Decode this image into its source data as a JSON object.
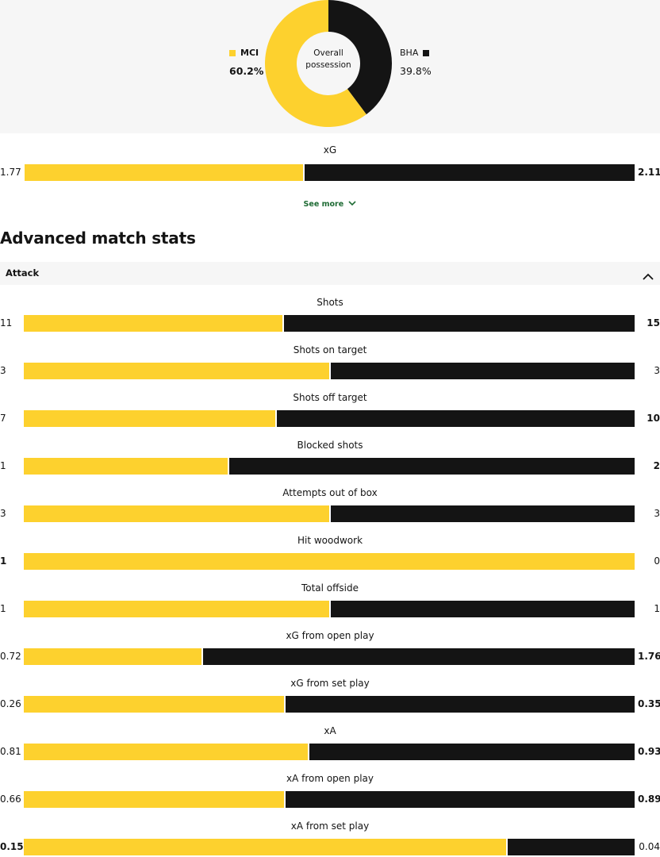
{
  "possession": {
    "center_label_1": "Overall",
    "center_label_2": "possession",
    "home": {
      "name": "MCI",
      "value": 60.2,
      "label": "60.2%",
      "color": "#fdd12e"
    },
    "away": {
      "name": "BHA",
      "value": 39.8,
      "label": "39.8%",
      "color": "#141414"
    }
  },
  "xg": {
    "label": "xG",
    "home": "1.77",
    "away": "2.11",
    "home_num": 1.77,
    "away_num": 2.11
  },
  "see_more": {
    "label": "See more",
    "icon": "chevron-down-icon"
  },
  "advanced": {
    "title": "Advanced match stats",
    "section": {
      "label": "Attack",
      "icon": "chevron-up-icon",
      "expanded": true
    }
  },
  "stats": [
    {
      "label": "Shots",
      "home": "11",
      "away": "15",
      "home_num": 11,
      "away_num": 15
    },
    {
      "label": "Shots on target",
      "home": "3",
      "away": "3",
      "home_num": 3,
      "away_num": 3
    },
    {
      "label": "Shots off target",
      "home": "7",
      "away": "10",
      "home_num": 7,
      "away_num": 10
    },
    {
      "label": "Blocked shots",
      "home": "1",
      "away": "2",
      "home_num": 1,
      "away_num": 2
    },
    {
      "label": "Attempts out of box",
      "home": "3",
      "away": "3",
      "home_num": 3,
      "away_num": 3
    },
    {
      "label": "Hit woodwork",
      "home": "1",
      "away": "0",
      "home_num": 1,
      "away_num": 0
    },
    {
      "label": "Total offside",
      "home": "1",
      "away": "1",
      "home_num": 1,
      "away_num": 1
    },
    {
      "label": "xG from open play",
      "home": "0.72",
      "away": "1.76",
      "home_num": 0.72,
      "away_num": 1.76
    },
    {
      "label": "xG from set play",
      "home": "0.26",
      "away": "0.35",
      "home_num": 0.26,
      "away_num": 0.35
    },
    {
      "label": "xA",
      "home": "0.81",
      "away": "0.93",
      "home_num": 0.81,
      "away_num": 0.93
    },
    {
      "label": "xA from open play",
      "home": "0.66",
      "away": "0.89",
      "home_num": 0.66,
      "away_num": 0.89
    },
    {
      "label": "xA from set play",
      "home": "0.15",
      "away": "0.04",
      "home_num": 0.15,
      "away_num": 0.04
    }
  ],
  "colors": {
    "home": "#fdd12e",
    "away": "#141414",
    "link": "#1e6b34",
    "panel": "#f6f6f6"
  }
}
